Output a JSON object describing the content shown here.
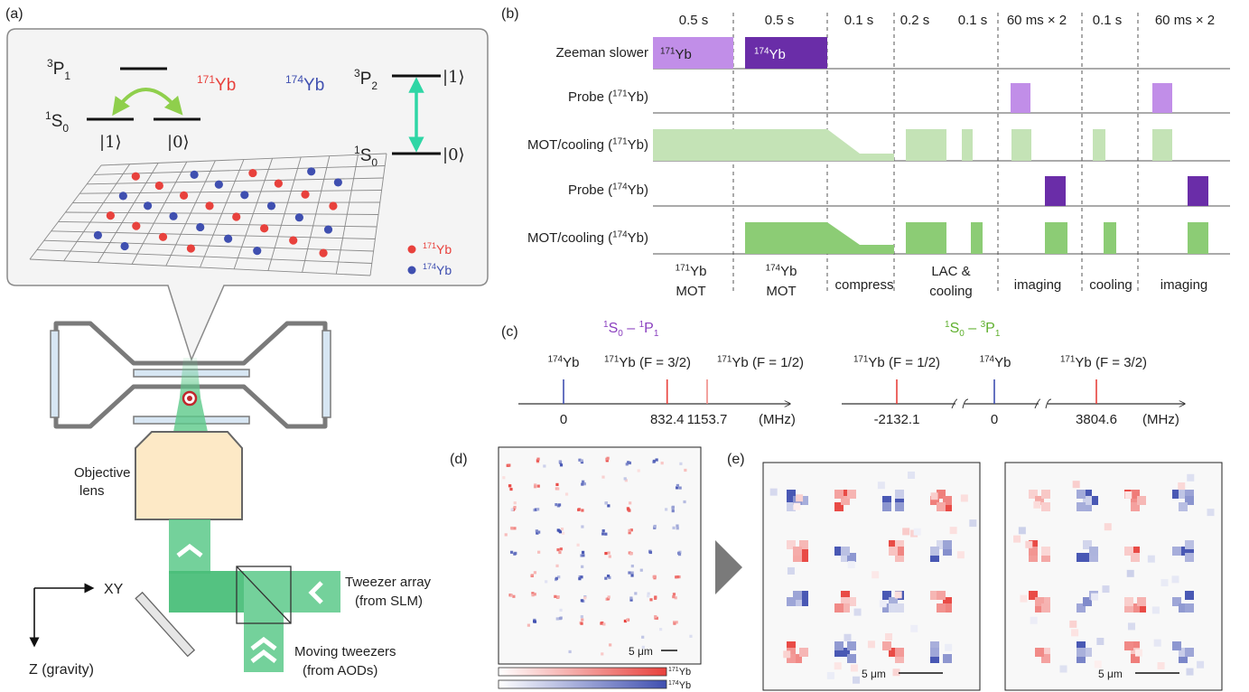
{
  "panels": {
    "a": "(a)",
    "b": "(b)",
    "c": "(c)",
    "d": "(d)",
    "e": "(e)"
  },
  "colors": {
    "yb171": "#e8413c",
    "yb174": "#3f4fb0",
    "green_light": "#c4e3b6",
    "green_dark": "#8ccc75",
    "purple_light": "#c18ee8",
    "purple_dark": "#6a2da8",
    "beam": "#5cc98a",
    "transition": "#2fd6a5",
    "arrow": "#8fcf4c",
    "c_purple": "#8a3fbf",
    "c_green": "#5fb02e"
  },
  "a": {
    "level_3P1": "3P1",
    "level_1S0_left": "1S0",
    "ket1": "|1⟩",
    "ket0": "|0⟩",
    "yb171_label": "171Yb",
    "yb174_label": "174Yb",
    "level_3P2": "3P2",
    "level_1S0_right": "1S0",
    "legend_171": "171Yb",
    "legend_174": "174Yb",
    "objective_label_1": "Objective",
    "objective_label_2": "lens",
    "axis_xy": "XY",
    "axis_z": "Z (gravity)",
    "tweezer_1": "Tweezer array",
    "tweezer_2": "(from SLM)",
    "moving_1": "Moving tweezers",
    "moving_2": "(from AODs)"
  },
  "b": {
    "durations": [
      "0.5 s",
      "0.5 s",
      "0.1 s",
      "0.2 s",
      "0.1 s",
      "60 ms × 2",
      "0.1 s",
      "60 ms × 2"
    ],
    "rows": [
      "Zeeman slower",
      "Probe (171Yb)",
      "MOT/cooling (171Yb)",
      "Probe (174Yb)",
      "MOT/cooling (174Yb)"
    ],
    "zeeman_171": "171Yb",
    "zeeman_174": "174Yb",
    "phases": [
      [
        "171Yb",
        "MOT"
      ],
      [
        "174Yb",
        "MOT"
      ],
      [
        "compress"
      ],
      [
        "LAC &",
        "cooling"
      ],
      [
        "imaging"
      ],
      [
        "cooling"
      ],
      [
        "imaging"
      ]
    ]
  },
  "c": {
    "left_title": "1S0 – 1P1",
    "left_lines": [
      {
        "label": "174Yb",
        "value": 0,
        "tick": "0"
      },
      {
        "label": "171Yb (F = 3/2)",
        "value": 832.4,
        "tick": "832.4"
      },
      {
        "label": "171Yb (F = 1/2)",
        "value": 1153.7,
        "tick": "1153.7"
      }
    ],
    "right_title": "1S0 – 3P1",
    "right_lines": [
      {
        "label": "171Yb (F = 1/2)",
        "value": -2132.1,
        "tick": "-2132.1"
      },
      {
        "label": "174Yb",
        "value": 0,
        "tick": "0"
      },
      {
        "label": "171Yb (F = 3/2)",
        "value": 3804.6,
        "tick": "3804.6"
      }
    ],
    "unit": "(MHz)"
  },
  "d": {
    "scale": "5 μm",
    "cb_171": "171Yb",
    "cb_174": "174Yb"
  },
  "e": {
    "scale_left": "5 μm",
    "scale_right": "5 μm"
  }
}
